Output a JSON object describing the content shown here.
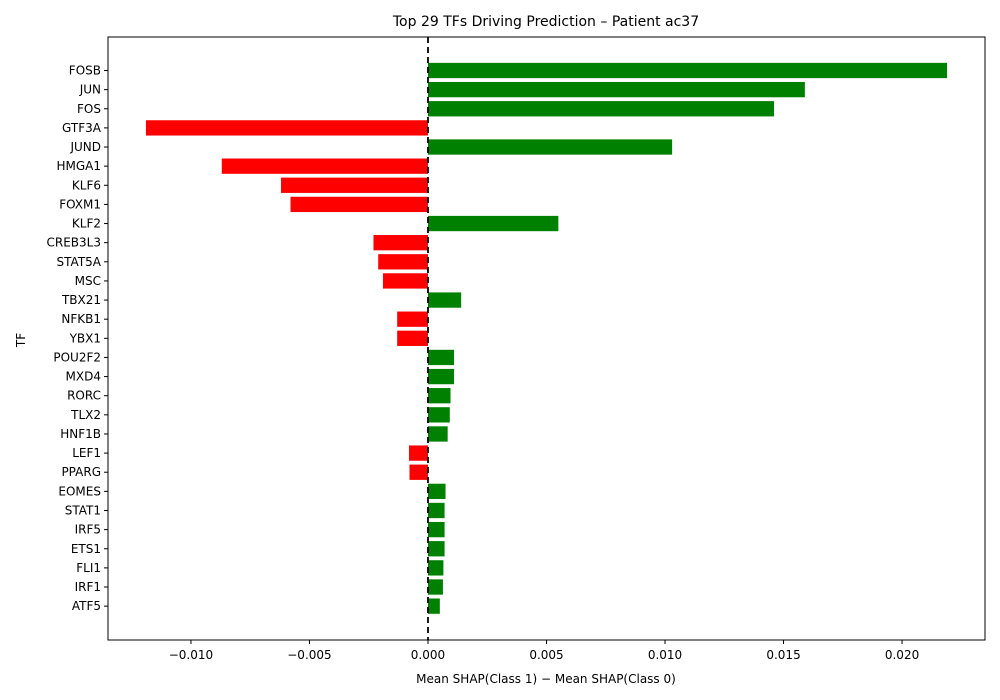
{
  "chart_data": {
    "type": "bar",
    "orientation": "horizontal",
    "title": "Top 29 TFs Driving Prediction – Patient ac37",
    "xlabel": "Mean SHAP(Class 1) − Mean SHAP(Class 0)",
    "ylabel": "TF",
    "xlim": [
      -0.0135,
      0.0235
    ],
    "xticks": [
      -0.01,
      -0.005,
      0.0,
      0.005,
      0.01,
      0.015,
      0.02
    ],
    "xtick_labels": [
      "−0.010",
      "−0.005",
      "0.000",
      "0.005",
      "0.010",
      "0.015",
      "0.020"
    ],
    "positive_color": "#008000",
    "negative_color": "#ff0000",
    "reference_line": 0,
    "categories": [
      "FOSB",
      "JUN",
      "FOS",
      "GTF3A",
      "JUND",
      "HMGA1",
      "KLF6",
      "FOXM1",
      "KLF2",
      "CREB3L3",
      "STAT5A",
      "MSC",
      "TBX21",
      "NFKB1",
      "YBX1",
      "POU2F2",
      "MXD4",
      "RORC",
      "TLX2",
      "HNF1B",
      "LEF1",
      "PPARG",
      "EOMES",
      "STAT1",
      "IRF5",
      "ETS1",
      "FLI1",
      "IRF1",
      "ATF5"
    ],
    "values": [
      0.0219,
      0.0159,
      0.0146,
      -0.0119,
      0.0103,
      -0.0087,
      -0.0062,
      -0.0058,
      0.0055,
      -0.0023,
      -0.0021,
      -0.0019,
      0.0014,
      -0.0013,
      -0.0013,
      0.0011,
      0.0011,
      0.00095,
      0.00092,
      0.00083,
      -0.0008,
      -0.00078,
      0.00074,
      0.0007,
      0.0007,
      0.0007,
      0.00065,
      0.00063,
      0.0005
    ]
  }
}
